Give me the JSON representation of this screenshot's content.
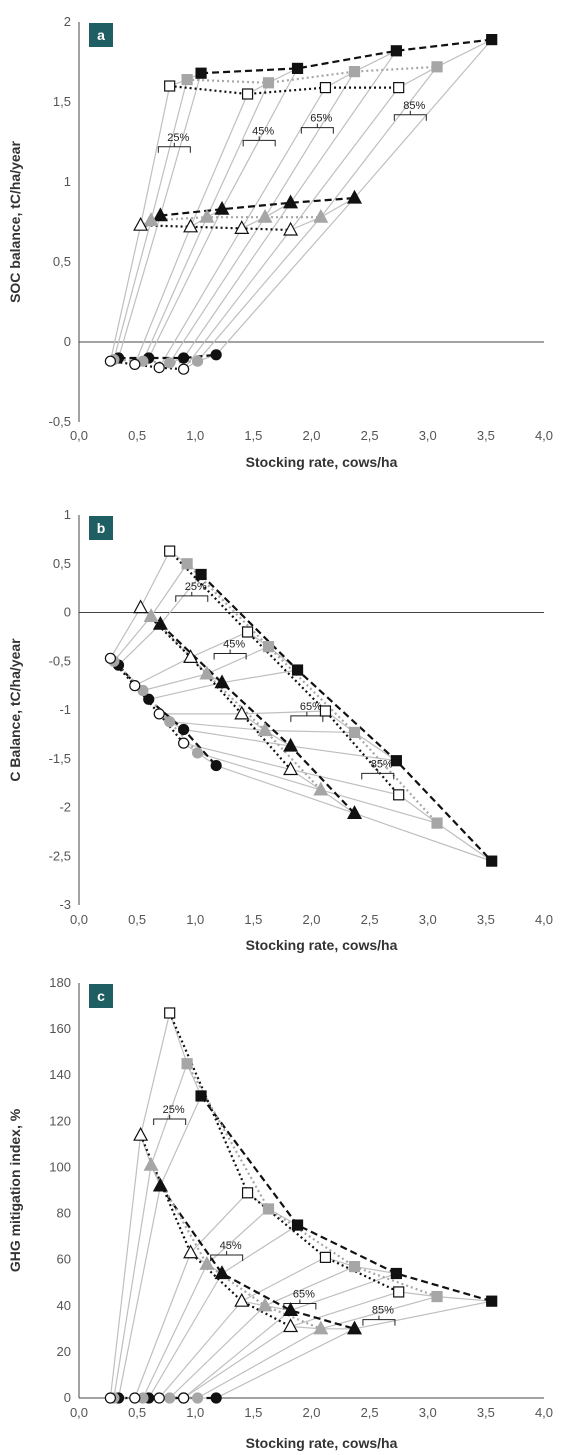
{
  "chart_data": [
    {
      "type": "scatter",
      "panel_label": "a",
      "xlabel": "Stocking rate, cows/ha",
      "ylabel": "SOC balance, tC/ha/year",
      "xlim": [
        0,
        4
      ],
      "ylim": [
        -0.5,
        2
      ],
      "xticks": [
        "0,0",
        "0,5",
        "1,0",
        "1,5",
        "2,0",
        "2,5",
        "3,0",
        "3,5",
        "4,0"
      ],
      "yticks": [
        "-0,5",
        "0",
        "0,5",
        "1",
        "1,5",
        "2"
      ],
      "bracket_labels": [
        {
          "text": "25%",
          "x": 0.82,
          "y": 1.22
        },
        {
          "text": "45%",
          "x": 1.55,
          "y": 1.26
        },
        {
          "text": "65%",
          "x": 2.05,
          "y": 1.34
        },
        {
          "text": "85%",
          "x": 2.85,
          "y": 1.42
        }
      ],
      "series": [
        {
          "marker": "square-filled",
          "line": "dashed",
          "color": "#111111",
          "points": [
            [
              1.05,
              1.68
            ],
            [
              1.88,
              1.71
            ],
            [
              2.73,
              1.82
            ],
            [
              3.55,
              1.89
            ]
          ]
        },
        {
          "marker": "square-filled",
          "line": "dotted",
          "color": "#a6a6a6",
          "points": [
            [
              0.93,
              1.64
            ],
            [
              1.63,
              1.62
            ],
            [
              2.37,
              1.69
            ],
            [
              3.08,
              1.72
            ]
          ]
        },
        {
          "marker": "square-open",
          "line": "dotted",
          "color": "#111111",
          "points": [
            [
              0.78,
              1.6
            ],
            [
              1.45,
              1.55
            ],
            [
              2.12,
              1.59
            ],
            [
              2.75,
              1.59
            ]
          ]
        },
        {
          "marker": "triangle-filled",
          "line": "dashed",
          "color": "#111111",
          "points": [
            [
              0.7,
              0.79
            ],
            [
              1.23,
              0.83
            ],
            [
              1.82,
              0.87
            ],
            [
              2.37,
              0.9
            ]
          ]
        },
        {
          "marker": "triangle-filled",
          "line": "dotted",
          "color": "#a6a6a6",
          "points": [
            [
              0.62,
              0.76
            ],
            [
              1.1,
              0.78
            ],
            [
              1.6,
              0.78
            ],
            [
              2.08,
              0.78
            ]
          ]
        },
        {
          "marker": "triangle-open",
          "line": "dotted",
          "color": "#111111",
          "points": [
            [
              0.53,
              0.73
            ],
            [
              0.96,
              0.72
            ],
            [
              1.4,
              0.71
            ],
            [
              1.82,
              0.7
            ]
          ]
        },
        {
          "marker": "circle-filled",
          "line": "dashed",
          "color": "#111111",
          "points": [
            [
              0.34,
              -0.1
            ],
            [
              0.6,
              -0.1
            ],
            [
              0.9,
              -0.1
            ],
            [
              1.18,
              -0.08
            ]
          ]
        },
        {
          "marker": "circle-filled",
          "line": "dotted",
          "color": "#a6a6a6",
          "points": [
            [
              0.3,
              -0.11
            ],
            [
              0.55,
              -0.12
            ],
            [
              0.78,
              -0.13
            ],
            [
              1.02,
              -0.12
            ]
          ]
        },
        {
          "marker": "circle-open",
          "line": "dotted",
          "color": "#111111",
          "points": [
            [
              0.27,
              -0.12
            ],
            [
              0.48,
              -0.14
            ],
            [
              0.69,
              -0.16
            ],
            [
              0.9,
              -0.17
            ]
          ]
        }
      ]
    },
    {
      "type": "scatter",
      "panel_label": "b",
      "xlabel": "Stocking rate, cows/ha",
      "ylabel": "C Balance, tC/ha/year",
      "xlim": [
        0,
        4
      ],
      "ylim": [
        -3,
        1
      ],
      "xticks": [
        "0,0",
        "0,5",
        "1,0",
        "1,5",
        "2,0",
        "2,5",
        "3,0",
        "3,5",
        "4,0"
      ],
      "yticks": [
        "-3",
        "-2,5",
        "-2",
        "-1,5",
        "-1",
        "-0,5",
        "0",
        "0,5",
        "1"
      ],
      "bracket_labels": [
        {
          "text": "25%",
          "x": 0.97,
          "y": 0.17
        },
        {
          "text": "45%",
          "x": 1.3,
          "y": -0.42
        },
        {
          "text": "65%",
          "x": 1.96,
          "y": -1.06
        },
        {
          "text": "85%",
          "x": 2.57,
          "y": -1.65
        }
      ],
      "series": [
        {
          "marker": "square-filled",
          "line": "dashed",
          "color": "#111111",
          "points": [
            [
              1.05,
              0.39
            ],
            [
              1.88,
              -0.59
            ],
            [
              2.73,
              -1.52
            ],
            [
              3.55,
              -2.55
            ]
          ]
        },
        {
          "marker": "square-filled",
          "line": "dotted",
          "color": "#a6a6a6",
          "points": [
            [
              0.93,
              0.5
            ],
            [
              1.63,
              -0.35
            ],
            [
              2.37,
              -1.23
            ],
            [
              3.08,
              -2.16
            ]
          ]
        },
        {
          "marker": "square-open",
          "line": "dotted",
          "color": "#111111",
          "points": [
            [
              0.78,
              0.63
            ],
            [
              1.45,
              -0.2
            ],
            [
              2.12,
              -1.01
            ],
            [
              2.75,
              -1.87
            ]
          ]
        },
        {
          "marker": "triangle-filled",
          "line": "dashed",
          "color": "#111111",
          "points": [
            [
              0.7,
              -0.12
            ],
            [
              1.23,
              -0.72
            ],
            [
              1.82,
              -1.37
            ],
            [
              2.37,
              -2.06
            ]
          ]
        },
        {
          "marker": "triangle-filled",
          "line": "dotted",
          "color": "#a6a6a6",
          "points": [
            [
              0.62,
              -0.04
            ],
            [
              1.1,
              -0.63
            ],
            [
              1.6,
              -1.21
            ],
            [
              2.08,
              -1.82
            ]
          ]
        },
        {
          "marker": "triangle-open",
          "line": "dotted",
          "color": "#111111",
          "points": [
            [
              0.53,
              0.05
            ],
            [
              0.96,
              -0.46
            ],
            [
              1.4,
              -1.04
            ],
            [
              1.82,
              -1.61
            ]
          ]
        },
        {
          "marker": "circle-filled",
          "line": "dashed",
          "color": "#111111",
          "points": [
            [
              0.34,
              -0.54
            ],
            [
              0.6,
              -0.89
            ],
            [
              0.9,
              -1.2
            ],
            [
              1.18,
              -1.57
            ]
          ]
        },
        {
          "marker": "circle-filled",
          "line": "dotted",
          "color": "#a6a6a6",
          "points": [
            [
              0.3,
              -0.5
            ],
            [
              0.55,
              -0.8
            ],
            [
              0.78,
              -1.12
            ],
            [
              1.02,
              -1.44
            ]
          ]
        },
        {
          "marker": "circle-open",
          "line": "dotted",
          "color": "#111111",
          "points": [
            [
              0.27,
              -0.47
            ],
            [
              0.48,
              -0.75
            ],
            [
              0.69,
              -1.04
            ],
            [
              0.9,
              -1.34
            ]
          ]
        }
      ]
    },
    {
      "type": "scatter",
      "panel_label": "c",
      "xlabel": "Stocking rate, cows/ha",
      "ylabel": "GHG mitigation index, %",
      "xlim": [
        0,
        4
      ],
      "ylim": [
        0,
        180
      ],
      "xticks": [
        "0,0",
        "0,5",
        "1,0",
        "1,5",
        "2,0",
        "2,5",
        "3,0",
        "3,5",
        "4,0"
      ],
      "yticks": [
        "0",
        "20",
        "40",
        "60",
        "80",
        "100",
        "120",
        "140",
        "160",
        "180"
      ],
      "bracket_labels": [
        {
          "text": "25%",
          "x": 0.78,
          "y": 121
        },
        {
          "text": "45%",
          "x": 1.27,
          "y": 62
        },
        {
          "text": "65%",
          "x": 1.9,
          "y": 41
        },
        {
          "text": "85%",
          "x": 2.58,
          "y": 34
        }
      ],
      "series": [
        {
          "marker": "square-filled",
          "line": "dashed",
          "color": "#111111",
          "points": [
            [
              1.05,
              131
            ],
            [
              1.88,
              75
            ],
            [
              2.73,
              54
            ],
            [
              3.55,
              42
            ]
          ]
        },
        {
          "marker": "square-filled",
          "line": "dotted",
          "color": "#a6a6a6",
          "points": [
            [
              0.93,
              145
            ],
            [
              1.63,
              82
            ],
            [
              2.37,
              57
            ],
            [
              3.08,
              44
            ]
          ]
        },
        {
          "marker": "square-open",
          "line": "dotted",
          "color": "#111111",
          "points": [
            [
              0.78,
              167
            ],
            [
              1.45,
              89
            ],
            [
              2.12,
              61
            ],
            [
              2.75,
              46
            ]
          ]
        },
        {
          "marker": "triangle-filled",
          "line": "dashed",
          "color": "#111111",
          "points": [
            [
              0.7,
              92
            ],
            [
              1.23,
              54
            ],
            [
              1.82,
              38
            ],
            [
              2.37,
              30
            ]
          ]
        },
        {
          "marker": "triangle-filled",
          "line": "dotted",
          "color": "#a6a6a6",
          "points": [
            [
              0.62,
              101
            ],
            [
              1.1,
              58
            ],
            [
              1.6,
              40
            ],
            [
              2.08,
              30
            ]
          ]
        },
        {
          "marker": "triangle-open",
          "line": "dotted",
          "color": "#111111",
          "points": [
            [
              0.53,
              114
            ],
            [
              0.96,
              63
            ],
            [
              1.4,
              42
            ],
            [
              1.82,
              31
            ]
          ]
        },
        {
          "marker": "circle-filled",
          "line": "dashed",
          "color": "#111111",
          "points": [
            [
              0.34,
              0
            ],
            [
              0.6,
              0
            ],
            [
              0.9,
              0
            ],
            [
              1.18,
              0
            ]
          ]
        },
        {
          "marker": "circle-filled",
          "line": "dotted",
          "color": "#a6a6a6",
          "points": [
            [
              0.3,
              0
            ],
            [
              0.55,
              0
            ],
            [
              0.78,
              0
            ],
            [
              1.02,
              0
            ]
          ]
        },
        {
          "marker": "circle-open",
          "line": "dotted",
          "color": "#111111",
          "points": [
            [
              0.27,
              0
            ],
            [
              0.48,
              0
            ],
            [
              0.69,
              0
            ],
            [
              0.9,
              0
            ]
          ]
        }
      ]
    }
  ],
  "colors": {
    "badge": "#1f5f63",
    "black": "#111111",
    "gray": "#a6a6a6",
    "connector": "#bfbfbf",
    "axis": "#333333"
  }
}
